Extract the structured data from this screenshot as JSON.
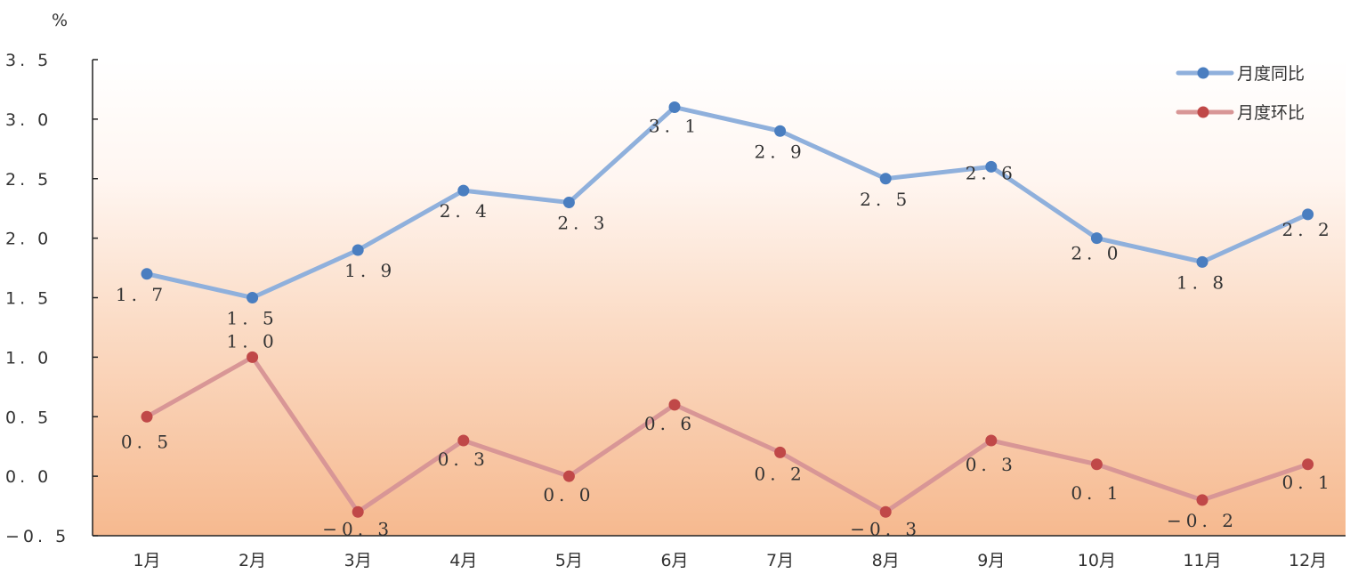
{
  "chart_data": {
    "type": "line",
    "y_unit": "%",
    "categories": [
      "1月",
      "2月",
      "3月",
      "4月",
      "5月",
      "6月",
      "7月",
      "8月",
      "9月",
      "10月",
      "11月",
      "12月"
    ],
    "ylim": [
      -0.5,
      3.5
    ],
    "yticks": [
      -0.5,
      0.0,
      0.5,
      1.0,
      1.5,
      2.0,
      2.5,
      3.0,
      3.5
    ],
    "ytick_labels": [
      "−0. 5",
      "0. 0",
      "0. 5",
      "1. 0",
      "1. 5",
      "2. 0",
      "2. 5",
      "3. 0",
      "3. 5"
    ],
    "grid": false,
    "legend_position": "top-right",
    "series": [
      {
        "name": "月度同比",
        "color": "#8fb0dc",
        "marker_color": "#4a7ec0",
        "values": [
          1.7,
          1.5,
          1.9,
          2.4,
          2.3,
          3.1,
          2.9,
          2.5,
          2.6,
          2.0,
          1.8,
          2.2
        ],
        "labels": [
          "1. 7",
          "1. 5",
          "1. 9",
          "2. 4",
          "2. 3",
          "3. 1",
          "2. 9",
          "2. 5",
          "2. 6",
          "2. 0",
          "1. 8",
          "2. 2"
        ]
      },
      {
        "name": "月度环比",
        "color": "#d89696",
        "marker_color": "#c04848",
        "values": [
          0.5,
          1.0,
          -0.3,
          0.3,
          0.0,
          0.6,
          0.2,
          -0.3,
          0.3,
          0.1,
          -0.2,
          0.1
        ],
        "labels": [
          "0. 5",
          "1. 0",
          "−0. 3",
          "0. 3",
          "0. 0",
          "0. 6",
          "0. 2",
          "−0. 3",
          "0. 3",
          "0. 1",
          "−0. 2",
          "0. 1"
        ]
      }
    ]
  }
}
